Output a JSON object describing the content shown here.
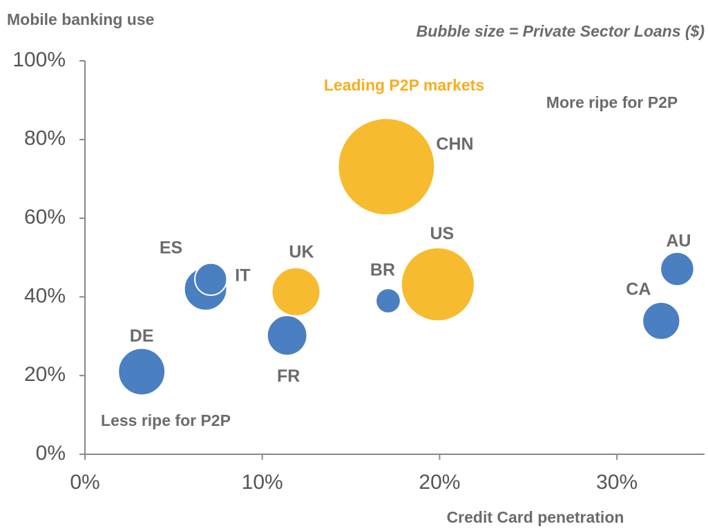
{
  "chart_data": {
    "type": "bubble",
    "y_label": "Mobile banking use",
    "x_label": "Credit Card penetration",
    "subtitle": "Bubble size = Private Sector Loans ($)",
    "annotations": [
      "Leading P2P markets",
      "More ripe for P2P",
      "Less ripe for P2P"
    ],
    "categories": [
      "DE",
      "ES",
      "IT",
      "UK",
      "FR",
      "BR",
      "CHN",
      "US",
      "AU",
      "CA"
    ],
    "x": [
      3.2,
      6.8,
      7.1,
      11.9,
      11.4,
      17.1,
      17.0,
      19.9,
      33.4,
      32.5
    ],
    "values": [
      21,
      42,
      44.5,
      41.3,
      30.2,
      39,
      73.1,
      43.2,
      47.1,
      33.9
    ],
    "sizes": [
      4.7,
      3.9,
      2.2,
      5.0,
      3.4,
      1.3,
      20,
      11.5,
      2.4,
      3.0
    ],
    "colors": [
      "#4a7fc1",
      "#4a7fc1",
      "#4a7fc1",
      "#f6bb2f",
      "#4a7fc1",
      "#4a7fc1",
      "#f6bb2f",
      "#f6bb2f",
      "#4a7fc1",
      "#4a7fc1"
    ],
    "xlim": [
      0,
      35
    ],
    "ylim": [
      0,
      100
    ],
    "xticks": [
      {
        "value": 0,
        "label": "0%"
      },
      {
        "value": 10,
        "label": "10%"
      },
      {
        "value": 20,
        "label": "20%"
      },
      {
        "value": 30,
        "label": "30%"
      }
    ],
    "yticks": [
      {
        "value": 0,
        "label": "0%"
      },
      {
        "value": 20,
        "label": "20%"
      },
      {
        "value": 40,
        "label": "40%"
      },
      {
        "value": 60,
        "label": "60%"
      },
      {
        "value": 80,
        "label": "80%"
      },
      {
        "value": 100,
        "label": "100%"
      }
    ]
  }
}
